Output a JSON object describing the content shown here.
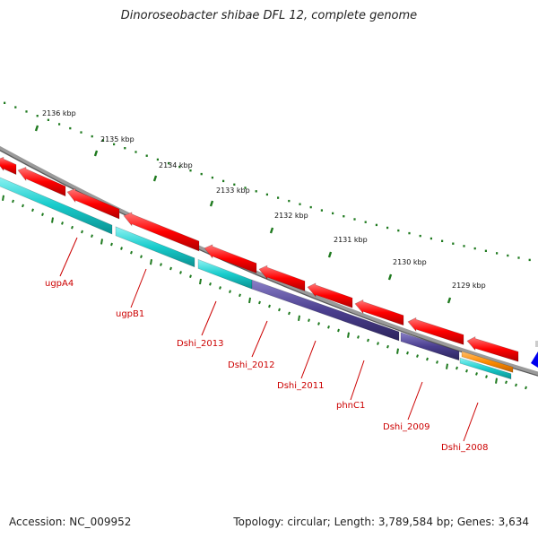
{
  "title": "Dinoroseobacter shibae DFL 12, complete genome",
  "footer": {
    "accession": "Accession: NC_009952",
    "summary": "Topology: circular; Length: 3,789,584 bp; Genes: 3,634"
  },
  "ruler_labels": [
    "2136 kbp",
    "2135 kbp",
    "2134 kbp",
    "2133 kbp",
    "2132 kbp",
    "2131 kbp",
    "2130 kbp",
    "2129 kbp"
  ],
  "gene_labels": [
    "ugpA4",
    "ugpB1",
    "Dshi_2013",
    "Dshi_2012",
    "Dshi_2011",
    "phnC1",
    "Dshi_2009",
    "Dshi_2008"
  ],
  "colors": {
    "forward_gene": "#ff0000",
    "cds_cyan": "#00cccc",
    "cds_purple": "#4b3f8f",
    "cds_orange": "#ff8c00",
    "backbone": "#7a7a7a",
    "tick": "#1f7a1f",
    "label": "#cc0000",
    "edge_marker": "#0000ee"
  }
}
